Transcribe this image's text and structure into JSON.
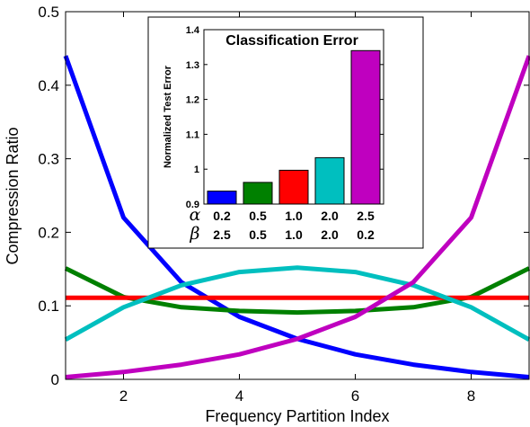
{
  "chart_data": [
    {
      "type": "line",
      "xlabel": "Frequency Partition Index",
      "ylabel": "Compression Ratio",
      "xlim": [
        1,
        9
      ],
      "ylim": [
        0,
        0.5
      ],
      "xticks": [
        2,
        4,
        6,
        8
      ],
      "yticks": [
        0,
        0.1,
        0.2,
        0.3,
        0.4,
        0.5
      ],
      "x": [
        1,
        2,
        3,
        4,
        5,
        6,
        7,
        8,
        9
      ],
      "series": [
        {
          "color": "#0000ff",
          "values": [
            0.44,
            0.22,
            0.132,
            0.085,
            0.055,
            0.034,
            0.02,
            0.01,
            0.003
          ]
        },
        {
          "color": "#008000",
          "values": [
            0.151,
            0.112,
            0.098,
            0.093,
            0.091,
            0.093,
            0.098,
            0.112,
            0.151
          ]
        },
        {
          "color": "#ff0000",
          "values": [
            0.111,
            0.111,
            0.111,
            0.111,
            0.111,
            0.111,
            0.111,
            0.111,
            0.111
          ]
        },
        {
          "color": "#00bfbf",
          "values": [
            0.054,
            0.098,
            0.128,
            0.146,
            0.152,
            0.146,
            0.128,
            0.098,
            0.054
          ]
        },
        {
          "color": "#bf00bf",
          "values": [
            0.003,
            0.01,
            0.02,
            0.034,
            0.055,
            0.085,
            0.132,
            0.22,
            0.44
          ]
        }
      ],
      "grid": false
    },
    {
      "type": "bar",
      "title": "Classification Error",
      "ylabel": "Normalized Test Error",
      "ylim": [
        0.9,
        1.4
      ],
      "yticks": [
        "0.9",
        "1",
        "1.1",
        "1.2",
        "1.3",
        "1.4"
      ],
      "param_labels": [
        "α",
        "β"
      ],
      "categories": [
        {
          "alpha": "0.2",
          "beta": "2.5"
        },
        {
          "alpha": "0.5",
          "beta": "0.5"
        },
        {
          "alpha": "1.0",
          "beta": "1.0"
        },
        {
          "alpha": "2.0",
          "beta": "2.0"
        },
        {
          "alpha": "2.5",
          "beta": "0.2"
        }
      ],
      "values": [
        0.937,
        0.962,
        0.997,
        1.033,
        1.34
      ],
      "colors": [
        "#0000ff",
        "#008000",
        "#ff0000",
        "#00bfbf",
        "#bf00bf"
      ]
    }
  ]
}
